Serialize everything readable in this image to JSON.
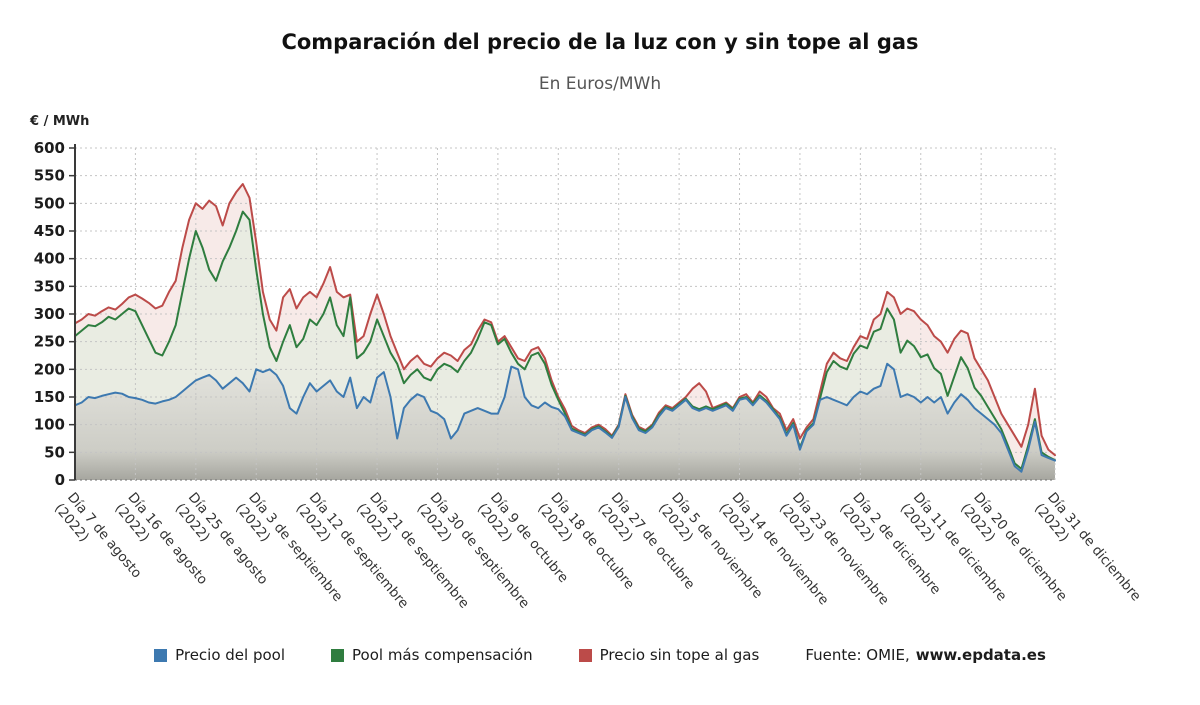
{
  "title": "Comparación del precio de la luz con y sin tope al gas",
  "subtitle": "En Euros/MWh",
  "y_axis_unit": "€ / MWh",
  "source": {
    "prefix": "Fuente: OMIE,",
    "link": "www.epdata.es"
  },
  "chart_data": {
    "type": "line",
    "title": "Comparación del precio de la luz con y sin tope al gas",
    "subtitle": "En Euros/MWh",
    "ylabel": "€ / MWh",
    "ylim": [
      0,
      600
    ],
    "y_tick_step": 50,
    "grid": true,
    "legend_position": "bottom",
    "x_unit": "days (daily values, 7 Aug 2022 – 31 Dec 2022)",
    "year_suffix": "(2022)",
    "x_tick_labels": [
      "Día 7 de agosto",
      "Día 16 de agosto",
      "Día 25 de agosto",
      "Día 3 de septiembre",
      "Día 12 de septiembre",
      "Día 21 de septiembre",
      "Día 30 de septiembre",
      "Día 9 de octubre",
      "Día 18 de octubre",
      "Día 27 de octubre",
      "Día 5 de noviembre",
      "Día 14 de noviembre",
      "Día 23 de noviembre",
      "Día 2 de diciembre",
      "Día 11 de diciembre",
      "Día 20 de diciembre",
      "Día 31 de diciembre"
    ],
    "x_tick_indices": [
      0,
      9,
      18,
      27,
      36,
      45,
      54,
      63,
      72,
      81,
      90,
      99,
      108,
      117,
      126,
      135,
      146
    ],
    "series": [
      {
        "name": "Precio del pool",
        "color": "#3d79b0",
        "values": [
          135,
          140,
          150,
          148,
          152,
          155,
          158,
          156,
          150,
          148,
          145,
          140,
          138,
          142,
          145,
          150,
          160,
          170,
          180,
          185,
          190,
          180,
          165,
          175,
          185,
          175,
          160,
          200,
          195,
          200,
          190,
          170,
          130,
          120,
          150,
          175,
          160,
          170,
          180,
          160,
          150,
          185,
          130,
          150,
          140,
          185,
          195,
          150,
          75,
          130,
          145,
          155,
          150,
          125,
          120,
          110,
          75,
          90,
          120,
          125,
          130,
          125,
          120,
          120,
          150,
          205,
          200,
          150,
          135,
          130,
          140,
          132,
          128,
          115,
          90,
          85,
          80,
          90,
          95,
          86,
          76,
          96,
          150,
          112,
          90,
          85,
          95,
          115,
          130,
          125,
          135,
          145,
          130,
          125,
          130,
          125,
          130,
          135,
          125,
          145,
          148,
          135,
          150,
          140,
          125,
          110,
          80,
          100,
          55,
          88,
          100,
          145,
          150,
          145,
          140,
          135,
          150,
          160,
          155,
          165,
          170,
          210,
          200,
          150,
          155,
          150,
          140,
          150,
          140,
          150,
          120,
          140,
          155,
          145,
          130,
          120,
          110,
          100,
          85,
          55,
          25,
          15,
          55,
          105,
          45,
          40,
          35
        ]
      },
      {
        "name": "Pool más compensación",
        "color": "#2f7d3f",
        "values": [
          260,
          270,
          280,
          278,
          285,
          295,
          290,
          300,
          310,
          305,
          280,
          255,
          230,
          225,
          250,
          280,
          340,
          400,
          450,
          420,
          380,
          360,
          395,
          420,
          450,
          485,
          470,
          380,
          300,
          240,
          215,
          250,
          280,
          240,
          255,
          290,
          280,
          300,
          330,
          280,
          260,
          330,
          220,
          230,
          250,
          290,
          260,
          230,
          210,
          175,
          190,
          200,
          185,
          180,
          200,
          210,
          205,
          195,
          215,
          230,
          255,
          285,
          280,
          245,
          255,
          230,
          210,
          200,
          225,
          230,
          210,
          172,
          145,
          120,
          93,
          87,
          82,
          92,
          97,
          88,
          78,
          98,
          152,
          115,
          93,
          88,
          98,
          118,
          132,
          127,
          137,
          147,
          133,
          128,
          133,
          128,
          133,
          138,
          128,
          147,
          150,
          138,
          153,
          143,
          128,
          113,
          83,
          103,
          58,
          90,
          103,
          148,
          195,
          215,
          205,
          200,
          228,
          243,
          238,
          268,
          273,
          310,
          290,
          230,
          252,
          242,
          222,
          227,
          202,
          192,
          152,
          187,
          222,
          202,
          167,
          152,
          132,
          112,
          92,
          62,
          30,
          20,
          62,
          110,
          50,
          42,
          36
        ]
      },
      {
        "name": "Precio sin tope al gas",
        "color": "#bc4b49",
        "values": [
          283,
          290,
          300,
          297,
          305,
          312,
          308,
          318,
          330,
          335,
          328,
          320,
          310,
          315,
          340,
          360,
          420,
          470,
          500,
          490,
          505,
          495,
          460,
          500,
          520,
          535,
          510,
          430,
          340,
          290,
          270,
          330,
          345,
          310,
          330,
          340,
          330,
          355,
          385,
          340,
          330,
          335,
          250,
          260,
          300,
          335,
          300,
          260,
          230,
          200,
          215,
          225,
          210,
          205,
          220,
          230,
          225,
          215,
          235,
          245,
          270,
          290,
          285,
          250,
          260,
          240,
          220,
          215,
          235,
          240,
          220,
          180,
          150,
          128,
          98,
          90,
          85,
          95,
          100,
          92,
          80,
          100,
          155,
          118,
          96,
          90,
          100,
          122,
          135,
          130,
          140,
          150,
          165,
          175,
          160,
          130,
          135,
          140,
          130,
          150,
          155,
          140,
          160,
          150,
          130,
          120,
          90,
          110,
          75,
          95,
          110,
          160,
          210,
          230,
          220,
          215,
          240,
          260,
          255,
          290,
          300,
          340,
          330,
          300,
          310,
          305,
          290,
          280,
          260,
          250,
          230,
          255,
          270,
          265,
          220,
          200,
          180,
          150,
          120,
          100,
          80,
          60,
          100,
          165,
          80,
          55,
          45
        ]
      }
    ],
    "area_fills": {
      "Precio sin tope al gas": "#f7eae8",
      "Pool más compensación": "#e9ece2",
      "Precio del pool": "gray-gradient"
    }
  }
}
